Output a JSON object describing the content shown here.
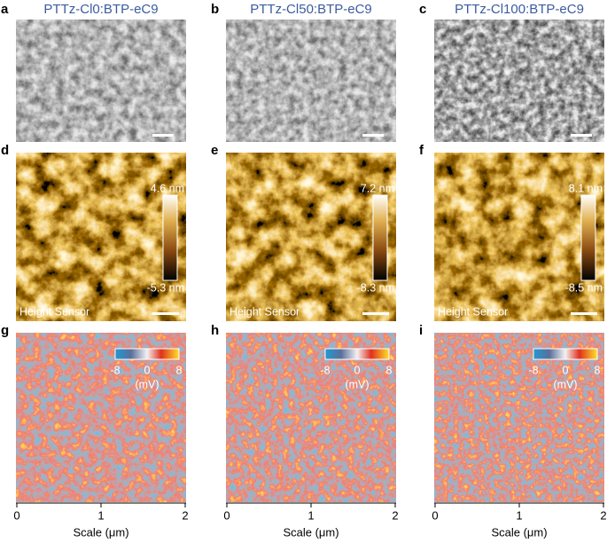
{
  "columns": [
    {
      "title": "PTTz-Cl0:BTP-eC9",
      "letters": [
        "a",
        "d",
        "g"
      ],
      "height_max": "4.6 nm",
      "height_min": "-5.3 nm"
    },
    {
      "title": "PTTz-Cl50:BTP-eC9",
      "letters": [
        "b",
        "e",
        "h"
      ],
      "height_max": "7.2 nm",
      "height_min": "-8.3 nm"
    },
    {
      "title": "PTTz-Cl100:BTP-eC9",
      "letters": [
        "c",
        "f",
        "i"
      ],
      "height_max": "8.1 nm",
      "height_min": "-8.5 nm"
    }
  ],
  "height_label": "Height Sensor",
  "potential_ticks": [
    -8,
    0,
    8
  ],
  "potential_unit": "(mV)",
  "x_ticks": [
    0,
    1,
    2
  ],
  "x_label": "Scale (μm)"
}
